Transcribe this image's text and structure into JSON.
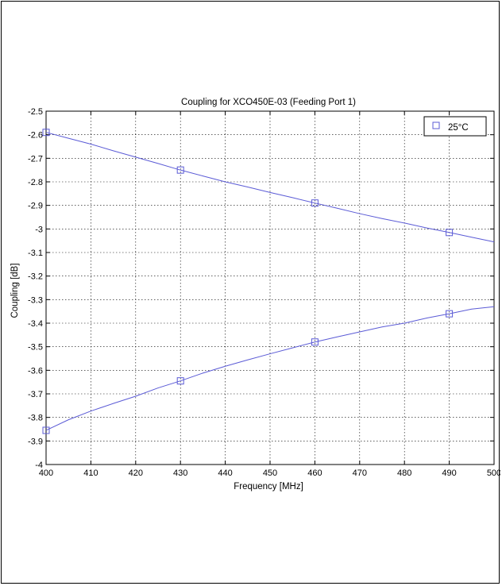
{
  "chart_data": {
    "type": "line",
    "title": "Coupling for XCO450E-03 (Feeding Port 1)",
    "xlabel": "Frequency [MHz]",
    "ylabel": "Coupling [dB]",
    "xlim": [
      400,
      500
    ],
    "ylim": [
      -4,
      -2.5
    ],
    "xticks": [
      400,
      410,
      420,
      430,
      440,
      450,
      460,
      470,
      480,
      490,
      500
    ],
    "xtick_labels": [
      "400",
      "410",
      "420",
      "430",
      "440",
      "450",
      "460",
      "470",
      "480",
      "490",
      "500"
    ],
    "yticks": [
      -2.5,
      -2.6,
      -2.7,
      -2.8,
      -2.9,
      -3,
      -3.1,
      -3.2,
      -3.3,
      -3.4,
      -3.5,
      -3.6,
      -3.7,
      -3.8,
      -3.9,
      -4
    ],
    "ytick_labels": [
      "-2.5",
      "-2.6",
      "-2.7",
      "-2.8",
      "-2.9",
      "-3",
      "-3.1",
      "-3.2",
      "-3.3",
      "-3.4",
      "-3.5",
      "-3.6",
      "-3.7",
      "-3.8",
      "-3.9",
      "-4"
    ],
    "grid": true,
    "legend_position": "top-right",
    "legend": [
      "25°C"
    ],
    "line_color": "#5b5bd6",
    "series": [
      {
        "name": "25°C",
        "x": [
          400,
          405,
          410,
          415,
          420,
          425,
          430,
          435,
          440,
          445,
          450,
          455,
          460,
          465,
          470,
          475,
          480,
          485,
          490,
          495,
          500
        ],
        "values": [
          -2.59,
          -2.615,
          -2.64,
          -2.668,
          -2.695,
          -2.722,
          -2.75,
          -2.775,
          -2.8,
          -2.822,
          -2.845,
          -2.867,
          -2.89,
          -2.912,
          -2.935,
          -2.956,
          -2.975,
          -2.996,
          -3.015,
          -3.035,
          -3.055
        ],
        "markers_x": [
          400,
          430,
          460,
          490
        ],
        "markers_y": [
          -2.59,
          -2.75,
          -2.89,
          -3.015
        ]
      },
      {
        "name": "",
        "x": [
          400,
          405,
          410,
          415,
          420,
          425,
          430,
          435,
          440,
          445,
          450,
          455,
          460,
          465,
          470,
          475,
          480,
          485,
          490,
          495,
          500
        ],
        "values": [
          -3.855,
          -3.81,
          -3.773,
          -3.741,
          -3.71,
          -3.675,
          -3.645,
          -3.612,
          -3.583,
          -3.556,
          -3.53,
          -3.505,
          -3.48,
          -3.458,
          -3.437,
          -3.416,
          -3.4,
          -3.378,
          -3.36,
          -3.34,
          -3.33
        ],
        "markers_x": [
          400,
          430,
          460,
          490
        ],
        "markers_y": [
          -3.855,
          -3.645,
          -3.48,
          -3.36
        ]
      }
    ]
  }
}
